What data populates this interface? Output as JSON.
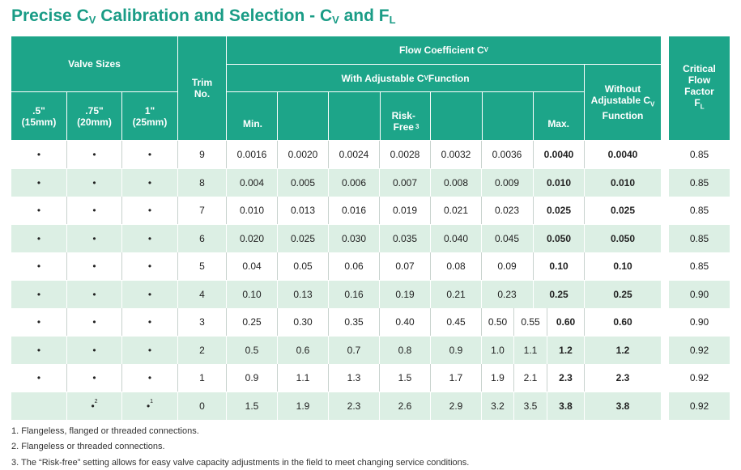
{
  "title": {
    "text": "Precise C",
    "sub1": "V",
    "mid": " Calibration and Selection - C",
    "sub2": "V",
    "end": " and F",
    "sub3": "L"
  },
  "header": {
    "valve_sizes": "Valve Sizes",
    "size_15": ".5\"\n(15mm)",
    "size_20": ".75\"\n(20mm)",
    "size_25": "1\"\n(25mm)",
    "trim_no": "Trim\nNo.",
    "flow_coeff": "Flow Coefficient C",
    "flow_coeff_sub": "V",
    "with_adj": "With Adjustable C",
    "with_adj_sub": "V",
    "with_adj_end": " Function",
    "min": "Min.",
    "risk_free": "Risk-\nFree",
    "risk_free_sup": "3",
    "max": "Max.",
    "without_adj": "Without\nAdjustable C",
    "without_adj_sub": "V",
    "without_adj_end": "\nFunction",
    "critical": "Critical\nFlow\nFactor\nF",
    "critical_sub": "L"
  },
  "rows": [
    {
      "s15": "•",
      "s20": "•",
      "s25": "•",
      "trim": "9",
      "v": [
        "0.0016",
        "0.0020",
        "0.0024",
        "0.0028",
        "0.0032",
        "0.0036"
      ],
      "max": "0.0040",
      "without": "0.0040",
      "fl": "0.85"
    },
    {
      "s15": "•",
      "s20": "•",
      "s25": "•",
      "trim": "8",
      "v": [
        "0.004",
        "0.005",
        "0.006",
        "0.007",
        "0.008",
        "0.009"
      ],
      "max": "0.010",
      "without": "0.010",
      "fl": "0.85"
    },
    {
      "s15": "•",
      "s20": "•",
      "s25": "•",
      "trim": "7",
      "v": [
        "0.010",
        "0.013",
        "0.016",
        "0.019",
        "0.021",
        "0.023"
      ],
      "max": "0.025",
      "without": "0.025",
      "fl": "0.85"
    },
    {
      "s15": "•",
      "s20": "•",
      "s25": "•",
      "trim": "6",
      "v": [
        "0.020",
        "0.025",
        "0.030",
        "0.035",
        "0.040",
        "0.045"
      ],
      "max": "0.050",
      "without": "0.050",
      "fl": "0.85"
    },
    {
      "s15": "•",
      "s20": "•",
      "s25": "•",
      "trim": "5",
      "v": [
        "0.04",
        "0.05",
        "0.06",
        "0.07",
        "0.08",
        "0.09"
      ],
      "max": "0.10",
      "without": "0.10",
      "fl": "0.85"
    },
    {
      "s15": "•",
      "s20": "•",
      "s25": "•",
      "trim": "4",
      "v": [
        "0.10",
        "0.13",
        "0.16",
        "0.19",
        "0.21",
        "0.23"
      ],
      "max": "0.25",
      "without": "0.25",
      "fl": "0.90"
    },
    {
      "s15": "•",
      "s20": "•",
      "s25": "•",
      "trim": "3",
      "v": [
        "0.25",
        "0.30",
        "0.35",
        "0.40",
        "0.45",
        "0.50",
        "0.55"
      ],
      "max": "0.60",
      "without": "0.60",
      "fl": "0.90"
    },
    {
      "s15": "•",
      "s20": "•",
      "s25": "•",
      "trim": "2",
      "v": [
        "0.5",
        "0.6",
        "0.7",
        "0.8",
        "0.9",
        "1.0",
        "1.1"
      ],
      "max": "1.2",
      "without": "1.2",
      "fl": "0.92"
    },
    {
      "s15": "•",
      "s20": "•",
      "s25": "•",
      "trim": "1",
      "v": [
        "0.9",
        "1.1",
        "1.3",
        "1.5",
        "1.7",
        "1.9",
        "2.1"
      ],
      "max": "2.3",
      "without": "2.3",
      "fl": "0.92"
    },
    {
      "s15": "",
      "s20": "•",
      "s20sup": "2",
      "s25": "•",
      "s25sup": "1",
      "trim": "0",
      "v": [
        "1.5",
        "1.9",
        "2.3",
        "2.6",
        "2.9",
        "3.2",
        "3.5"
      ],
      "max": "3.8",
      "without": "3.8",
      "fl": "0.92"
    }
  ],
  "notes": [
    "1.  Flangeless, flanged or threaded connections.",
    "2. Flangeless or threaded connections.",
    "3. The “Risk-free” setting allows for easy valve capacity adjustments in the field to meet changing service conditions."
  ]
}
